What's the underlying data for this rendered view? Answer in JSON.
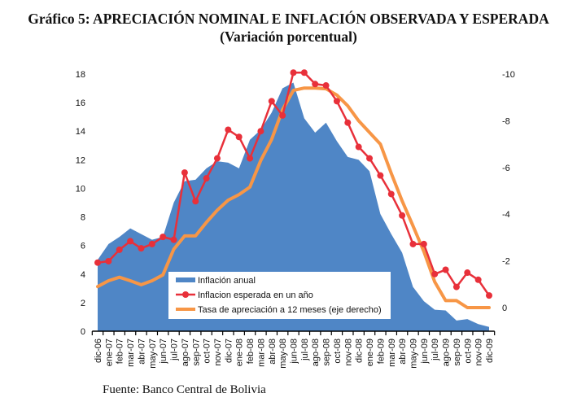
{
  "title_line1": "Gráfico 5: APRECIACIÓN NOMINAL E INFLACIÓN OBSERVADA Y ESPERADA",
  "title_line2": "(Variación porcentual)",
  "source": "Fuente: Banco Central de Bolivia",
  "colors": {
    "inflacion_anual": "#4f86c6",
    "inflacion_esperada": "#e8303a",
    "tasa_apreciacion": "#f79646"
  },
  "chart_data": {
    "type": "area",
    "title": "Gráfico 5: APRECIACIÓN NOMINAL E INFLACIÓN OBSERVADA Y ESPERADA (Variación porcentual)",
    "xlabel": "",
    "ylabel": "",
    "categories": [
      "dic-06",
      "ene-07",
      "feb-07",
      "mar-07",
      "abr-07",
      "may-07",
      "jun-07",
      "jul-07",
      "ago-07",
      "sep-07",
      "oct-07",
      "nov-07",
      "dic-07",
      "ene-08",
      "feb-08",
      "mar-08",
      "abr-08",
      "may-08",
      "jun-08",
      "jul-08",
      "ago-08",
      "sep-08",
      "oct-08",
      "nov-08",
      "dic-08",
      "ene-09",
      "feb-09",
      "mar-09",
      "abr-09",
      "may-09",
      "jun-09",
      "jul-09",
      "ago-09",
      "sep-09",
      "oct-09",
      "nov-09",
      "dic-09"
    ],
    "y_left": {
      "ylim": [
        0,
        18
      ],
      "ticks": [
        "0",
        "2",
        "4",
        "6",
        "8",
        "10",
        "12",
        "14",
        "16",
        "18"
      ]
    },
    "y_right": {
      "ylim": [
        1,
        -10
      ],
      "inverted": true,
      "ticks": [
        "0",
        "-2",
        "-4",
        "-6",
        "-8",
        "-10"
      ]
    },
    "grid": false,
    "legend_position": "bottom-center-inside",
    "series": [
      {
        "name": "Inflación anual",
        "type": "area",
        "axis": "left",
        "values": [
          5.0,
          6.1,
          6.6,
          7.2,
          6.8,
          6.4,
          6.6,
          9.0,
          10.5,
          10.6,
          11.4,
          11.9,
          11.8,
          11.4,
          13.4,
          14.1,
          15.3,
          17.0,
          17.4,
          14.9,
          13.9,
          14.6,
          13.3,
          12.2,
          12.0,
          11.2,
          8.2,
          6.8,
          5.5,
          3.1,
          2.1,
          1.5,
          1.45,
          0.75,
          0.85,
          0.5,
          0.3
        ]
      },
      {
        "name": "Inflacion esperada en un año",
        "type": "line-marker",
        "axis": "left",
        "values": [
          4.8,
          4.9,
          5.7,
          6.3,
          5.8,
          6.1,
          6.6,
          6.4,
          11.1,
          9.1,
          10.7,
          12.1,
          14.1,
          13.6,
          12.1,
          14.0,
          16.1,
          15.1,
          18.1,
          18.1,
          17.3,
          17.2,
          16.1,
          14.6,
          12.9,
          12.1,
          10.9,
          9.6,
          8.1,
          6.1,
          6.1,
          4.0,
          4.3,
          3.1,
          4.1,
          3.6,
          2.5
        ]
      },
      {
        "name": "Tasa de apreciación a 12 meses (eje derecho)",
        "type": "line",
        "axis": "right",
        "values": [
          -0.9,
          -1.15,
          -1.3,
          -1.15,
          -0.98,
          -1.15,
          -1.4,
          -2.5,
          -3.07,
          -3.07,
          -3.65,
          -4.17,
          -4.6,
          -4.84,
          -5.16,
          -6.3,
          -7.2,
          -8.47,
          -9.3,
          -9.4,
          -9.4,
          -9.37,
          -9.1,
          -8.64,
          -8.0,
          -7.5,
          -7.0,
          -5.75,
          -4.57,
          -3.5,
          -2.4,
          -1.1,
          -0.3,
          -0.3,
          0.0,
          0.0,
          0.0
        ]
      }
    ]
  }
}
